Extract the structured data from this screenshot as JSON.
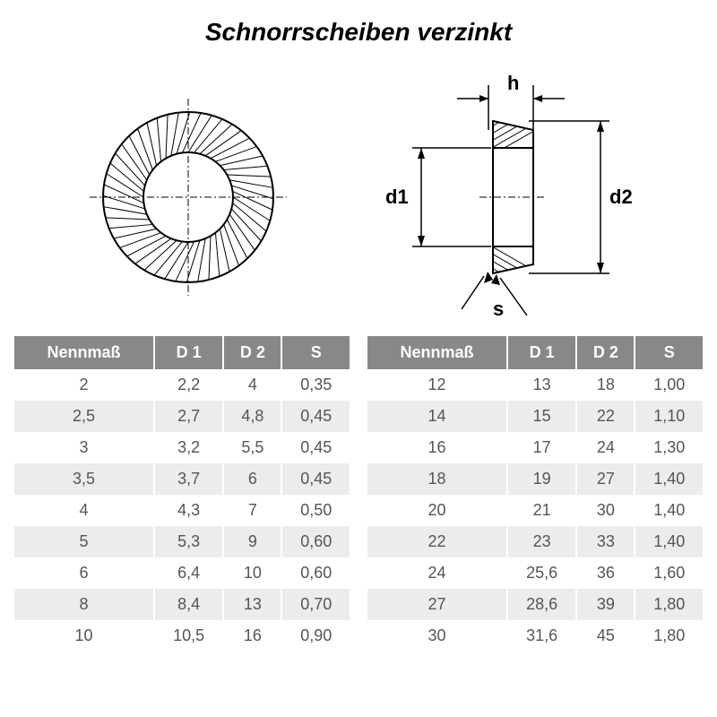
{
  "title": "Schnorrscheiben verzinkt",
  "diagram": {
    "labels": {
      "h": "h",
      "d1": "d1",
      "d2": "d2",
      "s": "s"
    },
    "stroke": "#000000",
    "washer_outer_r": 95,
    "washer_inner_r": 50,
    "teeth_count": 48
  },
  "table": {
    "header_bg": "#888888",
    "header_fg": "#ffffff",
    "row_odd_bg": "#ffffff",
    "row_even_bg": "#ececec",
    "text_color": "#555555",
    "columns": [
      "Nennmaß",
      "D 1",
      "D 2",
      "S"
    ],
    "left_rows": [
      [
        "2",
        "2,2",
        "4",
        "0,35"
      ],
      [
        "2,5",
        "2,7",
        "4,8",
        "0,45"
      ],
      [
        "3",
        "3,2",
        "5,5",
        "0,45"
      ],
      [
        "3,5",
        "3,7",
        "6",
        "0,45"
      ],
      [
        "4",
        "4,3",
        "7",
        "0,50"
      ],
      [
        "5",
        "5,3",
        "9",
        "0,60"
      ],
      [
        "6",
        "6,4",
        "10",
        "0,60"
      ],
      [
        "8",
        "8,4",
        "13",
        "0,70"
      ],
      [
        "10",
        "10,5",
        "16",
        "0,90"
      ]
    ],
    "right_rows": [
      [
        "12",
        "13",
        "18",
        "1,00"
      ],
      [
        "14",
        "15",
        "22",
        "1,10"
      ],
      [
        "16",
        "17",
        "24",
        "1,30"
      ],
      [
        "18",
        "19",
        "27",
        "1,40"
      ],
      [
        "20",
        "21",
        "30",
        "1,40"
      ],
      [
        "22",
        "23",
        "33",
        "1,40"
      ],
      [
        "24",
        "25,6",
        "36",
        "1,60"
      ],
      [
        "27",
        "28,6",
        "39",
        "1,80"
      ],
      [
        "30",
        "31,6",
        "45",
        "1,80"
      ]
    ]
  }
}
